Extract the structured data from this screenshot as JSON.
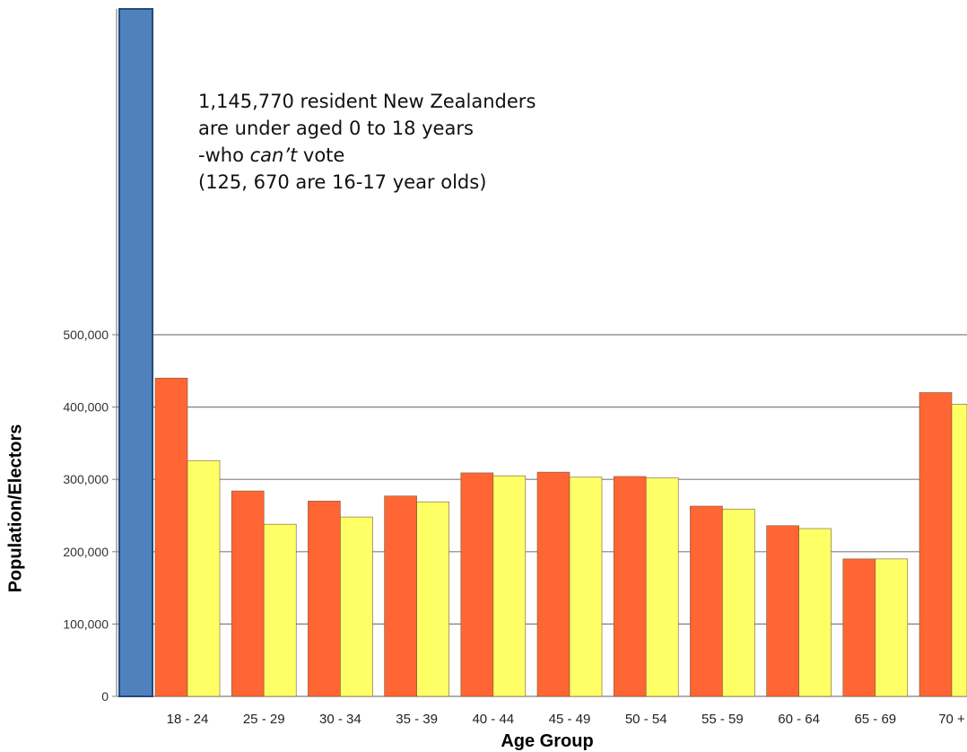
{
  "annotation": {
    "line1": "1,145,770 resident New Zealanders",
    "line2": "are under aged 0 to 18 years",
    "line3_prefix": "-who ",
    "line3_emphasis": "can’t",
    "line3_suffix": " vote",
    "line4": "(125, 670  are 16-17 year olds)"
  },
  "chart_data": {
    "type": "bar",
    "title": "",
    "xlabel": "Age Group",
    "ylabel": "Population/Electors",
    "ylim": [
      0,
      500000
    ],
    "y_ticks": [
      0,
      100000,
      200000,
      300000,
      400000,
      500000
    ],
    "y_tick_labels": [
      "0",
      "100,000",
      "200,000",
      "300,000",
      "400,000",
      "500,000"
    ],
    "grid": true,
    "categories": [
      "18 - 24",
      "25 - 29",
      "30 - 34",
      "35 - 39",
      "40 - 44",
      "45 - 49",
      "50 - 54",
      "55 - 59",
      "60 - 64",
      "65 - 69",
      "70 +"
    ],
    "series": [
      {
        "color": "#ff6633",
        "values": [
          440000,
          284000,
          270000,
          277000,
          309000,
          310000,
          304000,
          263000,
          236000,
          190000,
          420000
        ]
      },
      {
        "color": "#ffff66",
        "values": [
          326000,
          238000,
          248000,
          269000,
          305000,
          303000,
          302000,
          259000,
          232000,
          190000,
          404000
        ]
      }
    ],
    "under_18_bar": {
      "value": 1145770,
      "color": "#4f81bd"
    }
  }
}
